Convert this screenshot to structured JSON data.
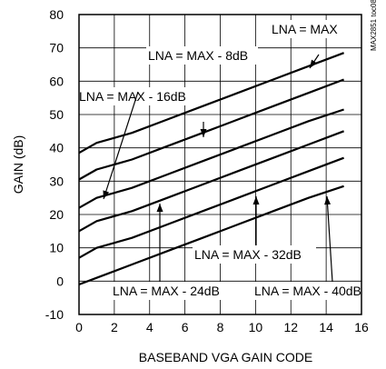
{
  "chart_data": {
    "type": "line",
    "xlabel": "BASEBAND VGA GAIN CODE",
    "ylabel": "GAIN (dB)",
    "xlim": [
      0,
      16
    ],
    "ylim": [
      -10,
      80
    ],
    "x_ticks": [
      0,
      2,
      4,
      6,
      8,
      10,
      12,
      14,
      16
    ],
    "y_ticks": [
      -10,
      0,
      10,
      20,
      30,
      40,
      50,
      60,
      70,
      80
    ],
    "grid": true,
    "watermark": "MAX2851 toc08",
    "series": [
      {
        "name": "LNA = MAX",
        "x": [
          0,
          1,
          3,
          5,
          7,
          9,
          11,
          13,
          15
        ],
        "y": [
          38.5,
          41.5,
          44.5,
          48.5,
          52.5,
          56.5,
          60.5,
          64.5,
          68.5
        ]
      },
      {
        "name": "LNA = MAX - 8dB",
        "x": [
          0,
          1,
          3,
          5,
          7,
          9,
          11,
          13,
          15
        ],
        "y": [
          30.5,
          33.5,
          36.5,
          40.5,
          44.5,
          48.5,
          52.5,
          56.5,
          60.5
        ]
      },
      {
        "name": "LNA = MAX - 16dB",
        "x": [
          0,
          1,
          3,
          5,
          7,
          9,
          11,
          13,
          15
        ],
        "y": [
          22,
          25,
          28,
          32,
          36,
          40,
          44,
          48,
          51.5
        ]
      },
      {
        "name": "LNA = MAX - 24dB",
        "x": [
          0,
          1,
          3,
          5,
          7,
          9,
          11,
          13,
          15
        ],
        "y": [
          15,
          18,
          21,
          25,
          29,
          33,
          37,
          41,
          45
        ]
      },
      {
        "name": "LNA = MAX - 32dB",
        "x": [
          0,
          1,
          3,
          5,
          7,
          9,
          11,
          13,
          15
        ],
        "y": [
          7,
          10,
          13,
          17,
          21,
          25,
          29,
          33,
          37
        ]
      },
      {
        "name": "LNA = MAX - 40dB",
        "x": [
          0,
          1,
          3,
          5,
          7,
          9,
          11,
          13,
          15
        ],
        "y": [
          -1,
          1,
          5,
          9,
          13,
          17,
          21,
          25,
          28.5
        ]
      }
    ],
    "annotations": [
      {
        "text": "LNA = MAX",
        "series": 0
      },
      {
        "text": "LNA = MAX - 8dB",
        "series": 1
      },
      {
        "text": "LNA = MAX - 16dB",
        "series": 2
      },
      {
        "text": "LNA = MAX - 24dB",
        "series": 3
      },
      {
        "text": "LNA = MAX - 32dB",
        "series": 4
      },
      {
        "text": "LNA = MAX - 40dB",
        "series": 5
      }
    ]
  }
}
